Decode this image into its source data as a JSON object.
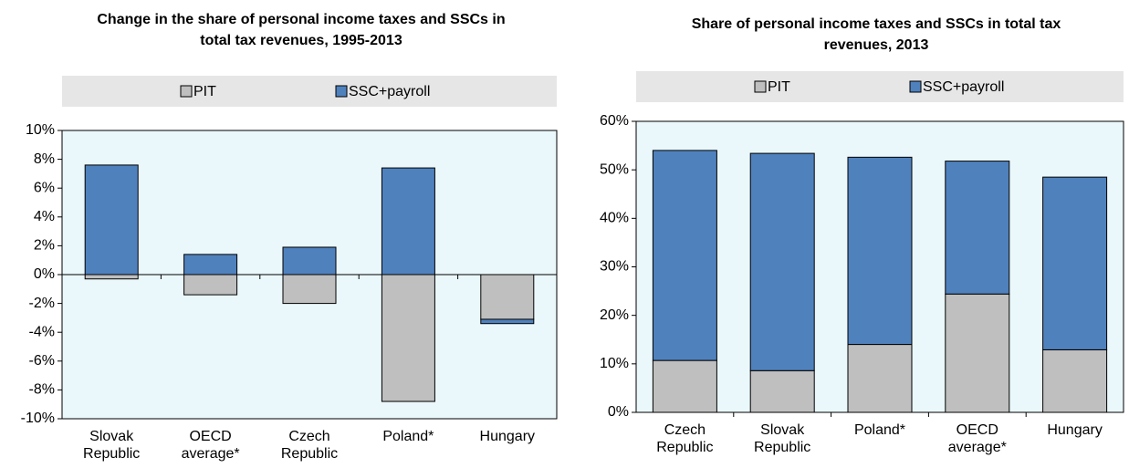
{
  "chart_data": [
    {
      "type": "stacked_bar",
      "title": "Change in the share of personal income taxes and SSCs in total tax revenues, 1995-2013",
      "categories": [
        "Slovak Republic",
        "OECD average*",
        "Czech Republic",
        "Poland*",
        "Hungary"
      ],
      "series": [
        {
          "name": "PIT",
          "color": "#bfbfbf",
          "values": [
            -0.3,
            -1.4,
            -2.0,
            -8.8,
            -3.1
          ]
        },
        {
          "name": "SSC+payroll",
          "color": "#4f81bd",
          "values": [
            7.6,
            1.4,
            1.9,
            7.4,
            -0.3
          ]
        }
      ],
      "ylim": [
        -10,
        10
      ],
      "yticks": [
        {
          "value": -10,
          "label": "-10%"
        },
        {
          "value": -8,
          "label": "-8%"
        },
        {
          "value": -6,
          "label": "-6%"
        },
        {
          "value": -4,
          "label": "-4%"
        },
        {
          "value": -2,
          "label": "-2%"
        },
        {
          "value": 0,
          "label": "0%"
        },
        {
          "value": 2,
          "label": "2%"
        },
        {
          "value": 4,
          "label": "4%"
        },
        {
          "value": 6,
          "label": "6%"
        },
        {
          "value": 8,
          "label": "8%"
        },
        {
          "value": 10,
          "label": "10%"
        }
      ],
      "legend": "top",
      "grid": false
    },
    {
      "type": "stacked_bar",
      "title": "Share of personal income taxes and SSCs in total tax revenues, 2013",
      "categories": [
        "Czech Republic",
        "Slovak Republic",
        "Poland*",
        "OECD average*",
        "Hungary"
      ],
      "series": [
        {
          "name": "PIT",
          "color": "#bfbfbf",
          "values": [
            10.7,
            8.6,
            14.0,
            24.4,
            12.9
          ]
        },
        {
          "name": "SSC+payroll",
          "color": "#4f81bd",
          "values": [
            43.3,
            44.8,
            38.6,
            27.4,
            35.6
          ]
        }
      ],
      "ylim": [
        0,
        60
      ],
      "yticks": [
        {
          "value": 0,
          "label": "0%"
        },
        {
          "value": 10,
          "label": "10%"
        },
        {
          "value": 20,
          "label": "20%"
        },
        {
          "value": 30,
          "label": "30%"
        },
        {
          "value": 40,
          "label": "40%"
        },
        {
          "value": 50,
          "label": "50%"
        },
        {
          "value": 60,
          "label": "60%"
        }
      ],
      "legend": "top",
      "grid": false
    }
  ]
}
